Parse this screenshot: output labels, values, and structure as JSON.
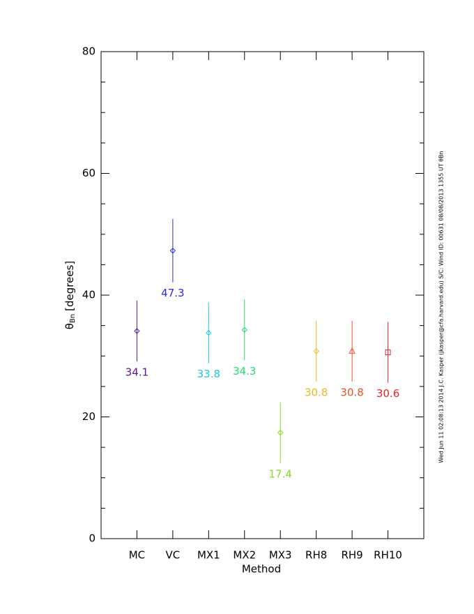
{
  "chart_data": {
    "type": "errorbar",
    "xlabel": "Method",
    "ylabel": {
      "symbol": "θ",
      "subscript": "Bn",
      "unit": "[degrees]"
    },
    "side_note": "Wed Jun 11 02:08:13 2014   J.C. Kasper (jkasper@cfa.harvard.edu)   S/C: Wind ID: 00631 08/08/2013  1355 UT θBn",
    "categories": [
      "MC",
      "VC",
      "MX1",
      "MX2",
      "MX3",
      "RH8",
      "RH9",
      "RH10"
    ],
    "values": [
      34.1,
      47.3,
      33.8,
      34.3,
      17.4,
      30.8,
      30.8,
      30.6
    ],
    "errors": [
      5.0,
      5.2,
      5.0,
      5.0,
      5.0,
      5.0,
      5.0,
      5.0
    ],
    "colors": [
      "#5b1a8c",
      "#2a2ad0",
      "#22c8d8",
      "#22dd70",
      "#8ada22",
      "#f0b820",
      "#ee5020",
      "#e02828"
    ],
    "markers": [
      "diamond",
      "diamond",
      "diamond",
      "diamond",
      "diamond",
      "diamond",
      "triangle",
      "square"
    ],
    "ylim": [
      0,
      80
    ],
    "yticks": [
      0,
      20,
      40,
      60,
      80
    ],
    "yminorticks": [
      5,
      10,
      15,
      25,
      30,
      35,
      45,
      50,
      55,
      65,
      70,
      75
    ]
  }
}
